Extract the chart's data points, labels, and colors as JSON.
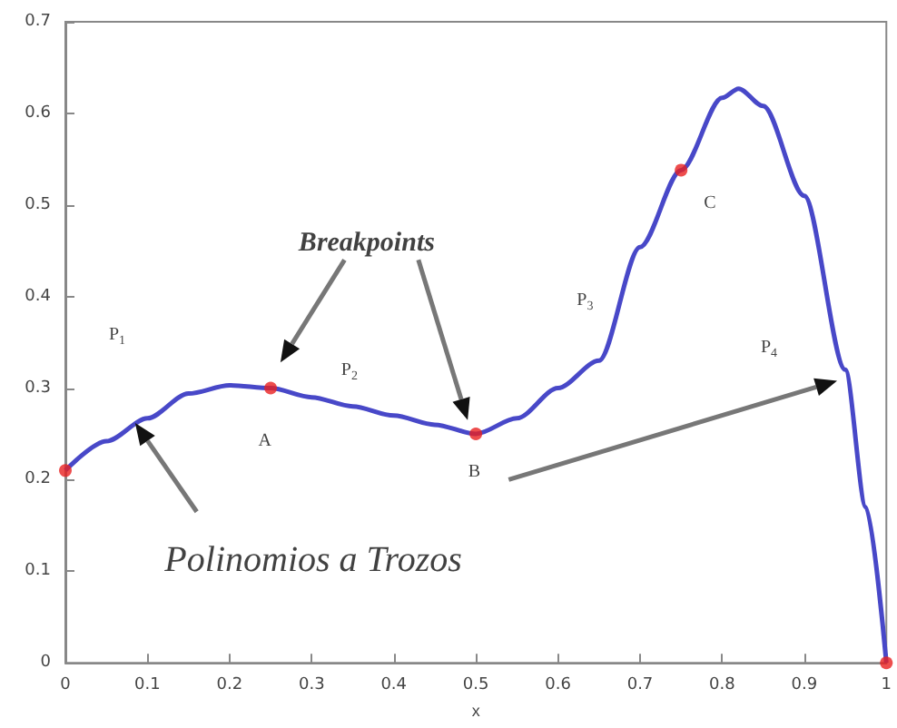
{
  "chart_data": {
    "type": "line",
    "xlabel": "x",
    "x": [
      0,
      0.05,
      0.1,
      0.15,
      0.2,
      0.25,
      0.3,
      0.35,
      0.4,
      0.45,
      0.5,
      0.55,
      0.6,
      0.65,
      0.7,
      0.75,
      0.8,
      0.82,
      0.85,
      0.9,
      0.95,
      0.975,
      1.0
    ],
    "series": [
      {
        "color": "#4848c8",
        "marker": "none",
        "values": [
          0.21,
          0.242,
          0.267,
          0.294,
          0.303,
          0.3,
          0.29,
          0.28,
          0.27,
          0.26,
          0.25,
          0.267,
          0.3,
          0.33,
          0.454,
          0.538,
          0.617,
          0.627,
          0.608,
          0.51,
          0.32,
          0.17,
          0.0
        ]
      },
      {
        "type": "scatter",
        "color": "#e82020",
        "marker": "circle",
        "x": [
          0,
          0.25,
          0.5,
          0.75,
          1.0
        ],
        "values": [
          0.21,
          0.3,
          0.25,
          0.538,
          0.0
        ]
      }
    ],
    "xlim": [
      0,
      1
    ],
    "xticks": [
      0,
      0.1,
      0.2,
      0.3,
      0.4,
      0.5,
      0.6,
      0.7,
      0.8,
      0.9,
      1
    ],
    "ylim": [
      0,
      0.7
    ],
    "yticks": [
      0,
      0.1,
      0.2,
      0.3,
      0.4,
      0.5,
      0.6,
      0.7
    ],
    "grid": false,
    "annotations": [
      "P$_{1}$",
      "P$_{2}$",
      "P$_{3}$",
      "P$_{4}$",
      "A",
      "B",
      "C",
      "Breakpoints",
      "Polinomios a Trozos"
    ]
  }
}
